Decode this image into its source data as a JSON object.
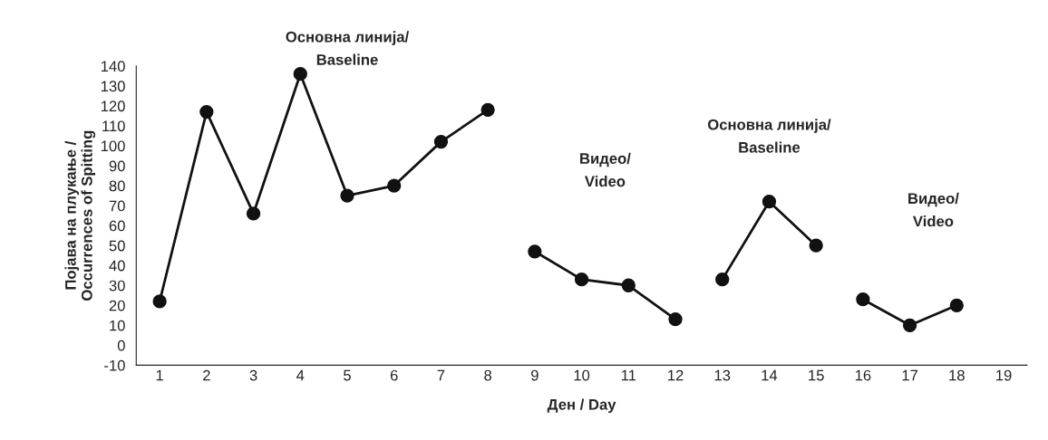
{
  "chart_data": {
    "type": "line",
    "xlabel": "Ден / Day",
    "ylabel": "Појава на плукање /\nOccurrences of Spitting",
    "categories": [
      "1",
      "2",
      "3",
      "4",
      "5",
      "6",
      "7",
      "8",
      "9",
      "10",
      "11",
      "12",
      "13",
      "14",
      "15",
      "16",
      "17",
      "18",
      "19"
    ],
    "series": [
      {
        "color": "#111111",
        "values": [
          22,
          117,
          66,
          136,
          75,
          80,
          102,
          118,
          null,
          null,
          null,
          null,
          null,
          null,
          null,
          null,
          null,
          null,
          null
        ]
      },
      {
        "color": "#111111",
        "values": [
          null,
          null,
          null,
          null,
          null,
          null,
          null,
          null,
          47,
          33,
          30,
          13,
          null,
          null,
          null,
          null,
          null,
          null,
          null
        ]
      },
      {
        "color": "#111111",
        "values": [
          null,
          null,
          null,
          null,
          null,
          null,
          null,
          null,
          null,
          null,
          null,
          null,
          33,
          72,
          50,
          null,
          null,
          null,
          null
        ]
      },
      {
        "color": "#111111",
        "values": [
          null,
          null,
          null,
          null,
          null,
          null,
          null,
          null,
          null,
          null,
          null,
          null,
          null,
          null,
          null,
          23,
          10,
          20,
          null
        ]
      }
    ],
    "ylim": [
      -10,
      140
    ],
    "yticks": [
      -10,
      0,
      10,
      20,
      30,
      40,
      50,
      60,
      70,
      80,
      90,
      100,
      110,
      120,
      130,
      140
    ],
    "grid": false,
    "marker": "circle",
    "line_style": "solid",
    "annotations": [
      "Основна линија/\nBaseline",
      "Видео/\nVideo",
      "Основна линија/\nBaseline",
      "Видео/\nVideo"
    ]
  }
}
